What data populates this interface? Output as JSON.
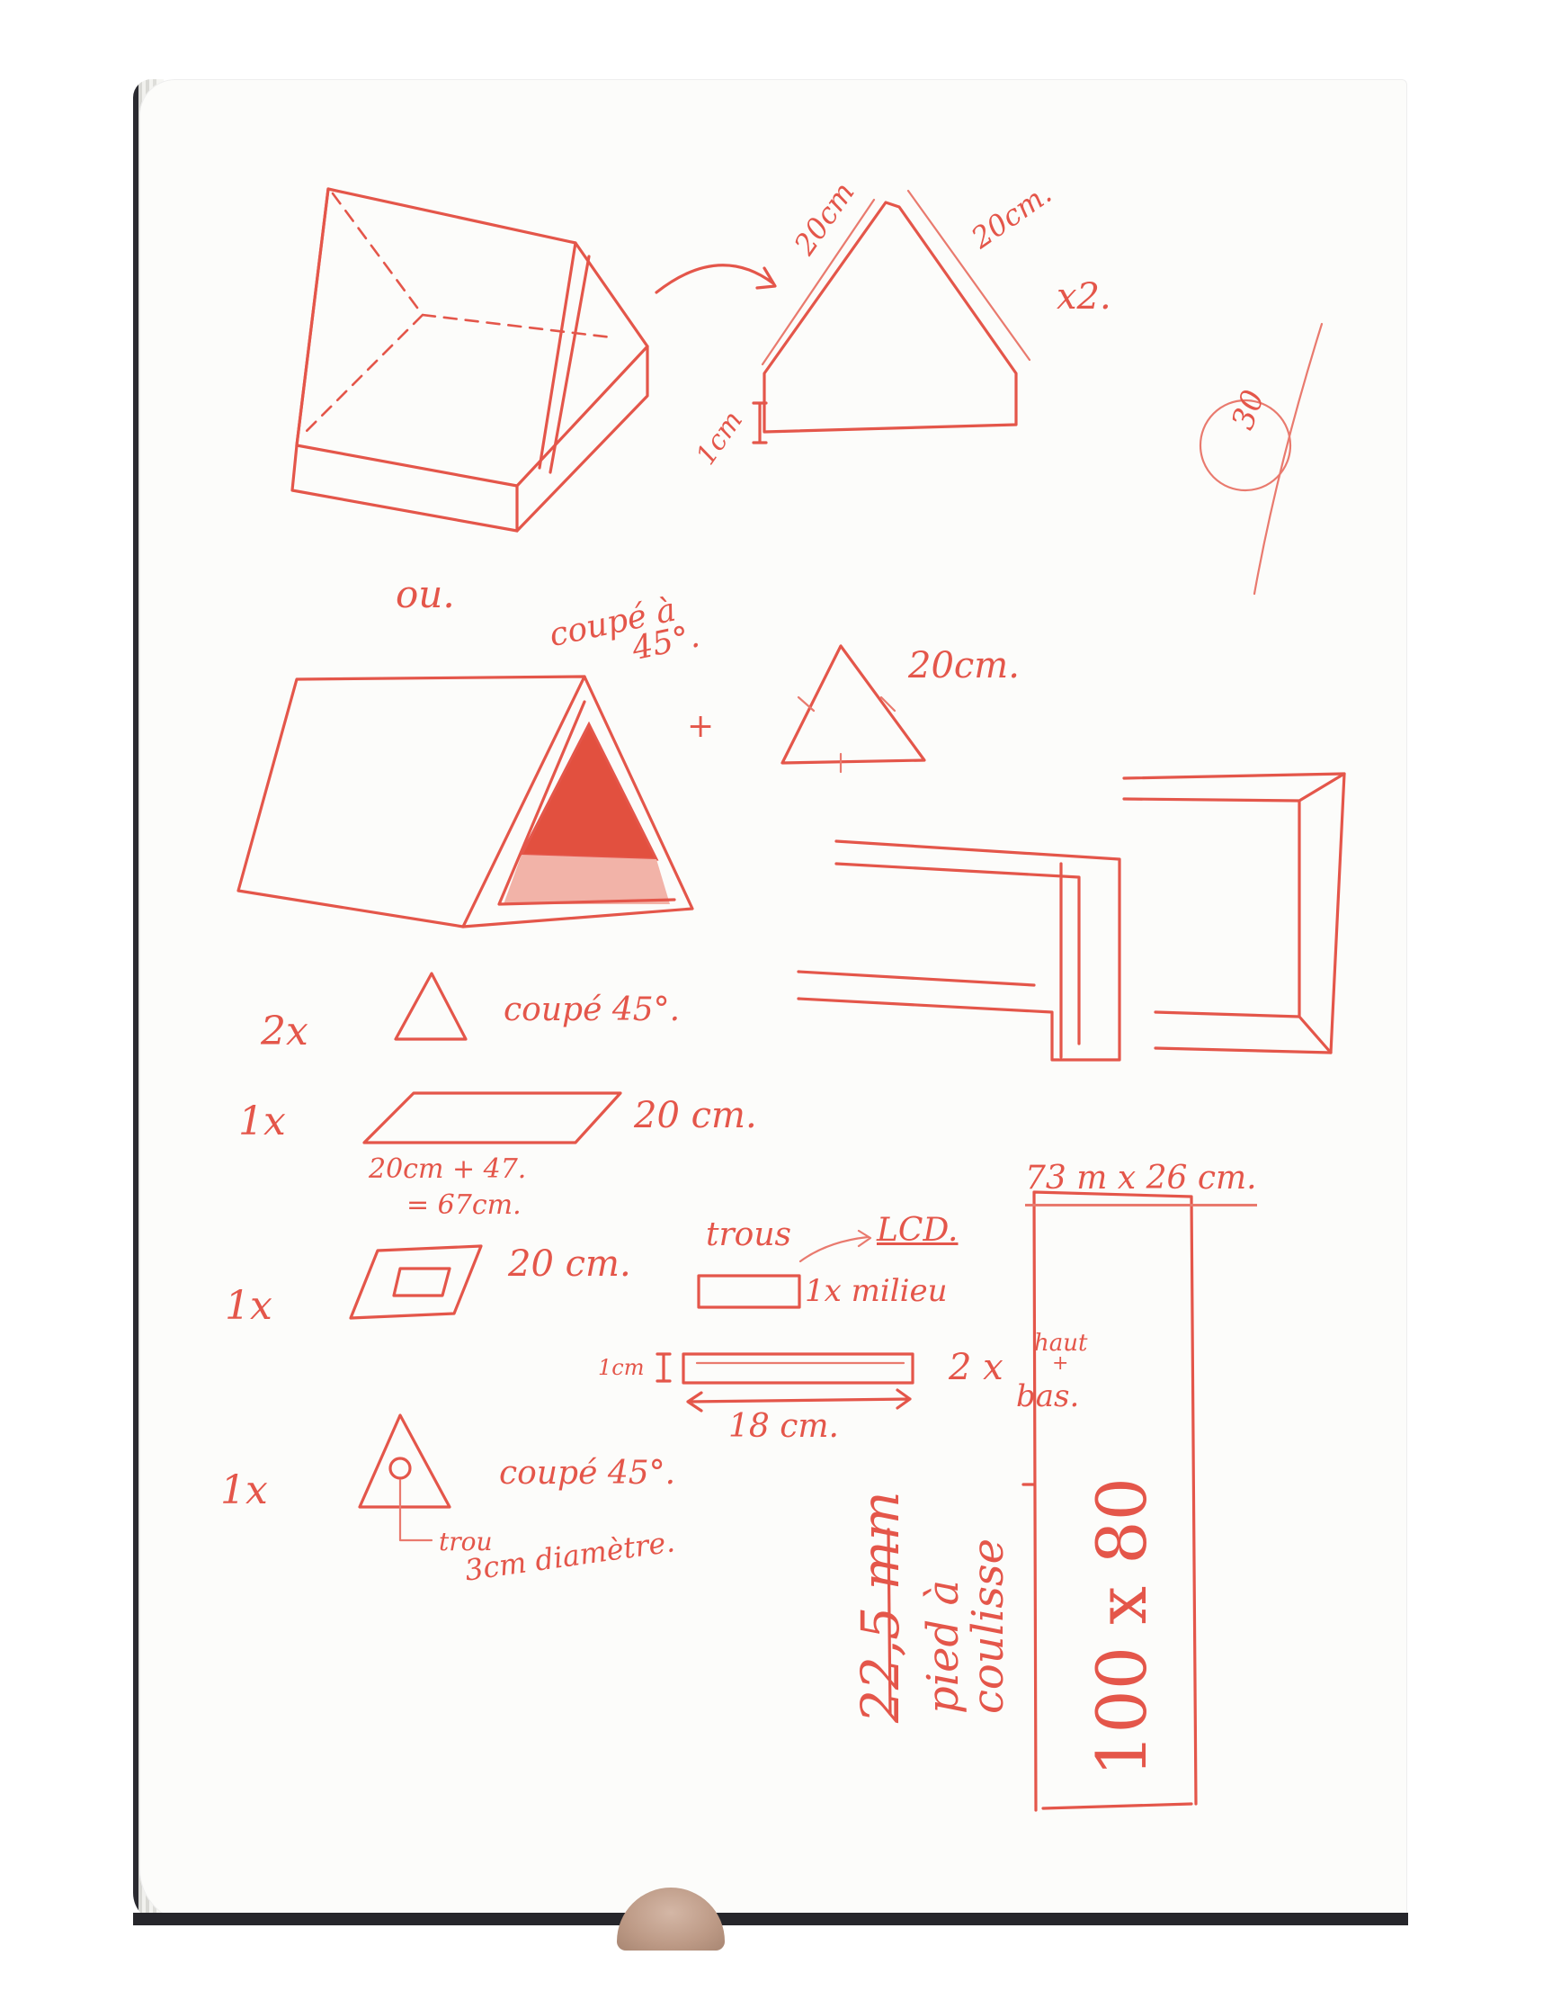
{
  "notes": {
    "ou": "ou.",
    "side_a": "20cm",
    "side_b": "20cm.",
    "times_two": "x2.",
    "height_1cm": "1cm",
    "margin_note": "30",
    "cut_45_top": "coupé à",
    "cut_45_top_deg": "45°.",
    "plus": "+",
    "tri_20cm": "20cm.",
    "row1_qty": "2x",
    "row1_desc": "coupé 45°.",
    "row2_qty": "1x",
    "row2_dim": "20 cm.",
    "row2_calc1": "20cm + 47.",
    "row2_calc2": "= 67cm.",
    "total": "73 m x 26 cm.",
    "row3_qty": "1x",
    "row3_dim": "20 cm.",
    "trous": "trous",
    "lcd": "LCD.",
    "milieu": "1x milieu",
    "slat_height": "1cm",
    "slat_qty": "2 x",
    "haut": "haut",
    "haut_plus": "+",
    "bas": "bas.",
    "slat_len": "18 cm.",
    "row4_qty": "1x",
    "row4_desc": "coupé 45°.",
    "trou": "trou",
    "diametre": "3cm diamètre.",
    "mm": "22,5 mm",
    "pied": "pied à",
    "coulisse": "coulisse",
    "board": "100 x 80"
  },
  "colors": {
    "ink": "#e4564a",
    "ink_light": "#e97a6e",
    "fill_dark": "#e2503f",
    "fill_light": "#f2b3a8",
    "paper": "#fcfcfa"
  }
}
